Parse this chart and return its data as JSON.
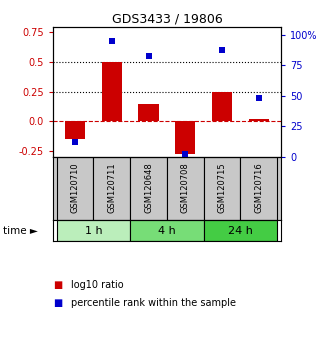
{
  "title": "GDS3433 / 19806",
  "samples": [
    "GSM120710",
    "GSM120711",
    "GSM120648",
    "GSM120708",
    "GSM120715",
    "GSM120716"
  ],
  "log10_ratio": [
    -0.15,
    0.5,
    0.15,
    -0.28,
    0.25,
    0.02
  ],
  "percentile_rank": [
    12,
    95,
    83,
    2,
    88,
    48
  ],
  "groups": [
    {
      "label": "1 h",
      "indices": [
        0,
        1
      ],
      "color": "#bbeebb"
    },
    {
      "label": "4 h",
      "indices": [
        2,
        3
      ],
      "color": "#77dd77"
    },
    {
      "label": "24 h",
      "indices": [
        4,
        5
      ],
      "color": "#44cc44"
    }
  ],
  "bar_color": "#cc0000",
  "marker_color": "#0000cc",
  "ylim_left": [
    -0.3,
    0.8
  ],
  "ylim_right": [
    0,
    107
  ],
  "yticks_left": [
    -0.25,
    0.0,
    0.25,
    0.5,
    0.75
  ],
  "yticks_right": [
    0,
    25,
    50,
    75,
    100
  ],
  "hlines": [
    0.0,
    0.25,
    0.5
  ],
  "hline_styles": [
    "dashed",
    "dotted",
    "dotted"
  ],
  "hline_colors": [
    "#cc0000",
    "#000000",
    "#000000"
  ],
  "bg_color": "#ffffff",
  "label_log10": "log10 ratio",
  "label_percentile": "percentile rank within the sample",
  "cell_bg": "#c8c8c8"
}
